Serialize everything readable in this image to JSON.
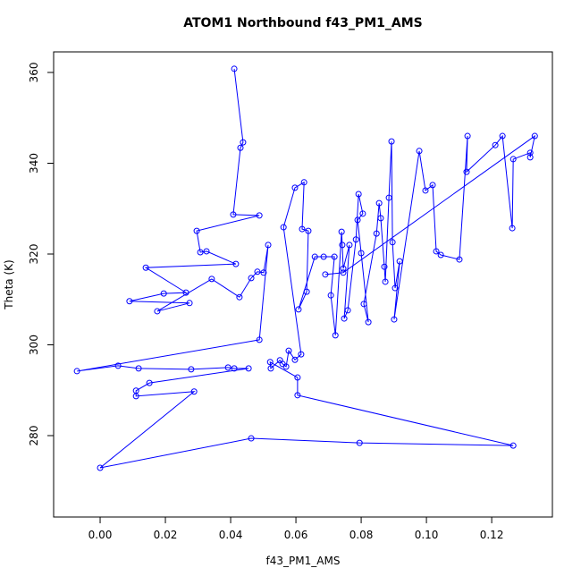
{
  "chart_data": {
    "type": "scatter",
    "connect": true,
    "title": "ATOM1 Northbound f43_PM1_AMS",
    "xlabel": "f43_PM1_AMS",
    "ylabel": "Theta (K)",
    "color": "#0000ff",
    "x": [
      0.0411,
      0.0438,
      0.043,
      0.0408,
      0.0488,
      0.0296,
      0.0307,
      0.0326,
      0.0416,
      0.014,
      0.0263,
      0.0195,
      0.009,
      0.0274,
      0.0175,
      0.0342,
      0.0427,
      0.0463,
      0.0482,
      0.0501,
      0.0515,
      0.0488,
      -0.0071,
      0.0055,
      0.0118,
      0.0279,
      0.0392,
      0.0411,
      0.0455,
      0.0151,
      0.011,
      0.011,
      0.0288,
      0.0,
      0.0463,
      0.0795,
      0.1266,
      0.0605,
      0.0605,
      0.0521,
      0.0523,
      0.0551,
      0.0559,
      0.057,
      0.0578,
      0.0597,
      0.0616,
      0.0562,
      0.0597,
      0.0625,
      0.0619,
      0.0638,
      0.0633,
      0.0608,
      0.0658,
      0.0685,
      0.0718,
      0.0707,
      0.0721,
      0.074,
      0.0742,
      0.0745,
      0.0764,
      0.0748,
      0.0759,
      0.0784,
      0.0792,
      0.0805,
      0.0789,
      0.08,
      0.0822,
      0.0808,
      0.0847,
      0.0855,
      0.086,
      0.0871,
      0.0874,
      0.0885,
      0.0893,
      0.0896,
      0.0904,
      0.0918,
      0.0901,
      0.0978,
      0.0997,
      0.1019,
      0.103,
      0.1044,
      0.1101,
      0.1126,
      0.1123,
      0.1211,
      0.1233,
      0.1263,
      0.1266,
      0.1318,
      0.1318,
      0.1332,
      0.0745,
      0.069
    ],
    "y": [
      360.8,
      344.6,
      343.4,
      328.7,
      328.5,
      325.1,
      320.4,
      320.6,
      317.8,
      317.0,
      311.5,
      311.3,
      309.6,
      309.2,
      307.4,
      314.5,
      310.5,
      314.7,
      316.1,
      315.9,
      322.0,
      301.1,
      294.2,
      295.4,
      294.8,
      294.6,
      295.0,
      294.8,
      294.8,
      291.6,
      289.9,
      288.7,
      289.7,
      272.9,
      279.4,
      278.4,
      277.8,
      288.9,
      292.8,
      296.2,
      294.8,
      296.6,
      295.8,
      295.2,
      298.7,
      296.7,
      297.9,
      325.9,
      334.6,
      335.8,
      325.5,
      325.1,
      311.7,
      307.8,
      319.4,
      319.4,
      319.4,
      310.9,
      302.1,
      324.9,
      322.0,
      316.8,
      322.0,
      305.8,
      307.6,
      323.2,
      333.2,
      328.9,
      327.5,
      320.2,
      305.0,
      309.0,
      324.5,
      331.2,
      327.9,
      317.2,
      313.9,
      332.4,
      344.8,
      322.6,
      312.5,
      318.4,
      305.6,
      342.7,
      334.0,
      335.2,
      320.6,
      319.8,
      318.8,
      346.0,
      338.1,
      344.0,
      346.0,
      325.7,
      340.9,
      342.3,
      341.3,
      346.0,
      315.9,
      315.5
    ],
    "xlim": [
      -0.01425,
      0.1386
    ],
    "ylim": [
      262.07,
      364.53
    ],
    "xticks": [
      {
        "value": 0,
        "label": "0.00"
      },
      {
        "value": 0.02,
        "label": "0.02"
      },
      {
        "value": 0.04,
        "label": "0.04"
      },
      {
        "value": 0.06,
        "label": "0.06"
      },
      {
        "value": 0.08,
        "label": "0.08"
      },
      {
        "value": 0.1,
        "label": "0.10"
      },
      {
        "value": 0.12,
        "label": "0.12"
      }
    ],
    "yticks": [
      280,
      300,
      320,
      340,
      360
    ]
  }
}
